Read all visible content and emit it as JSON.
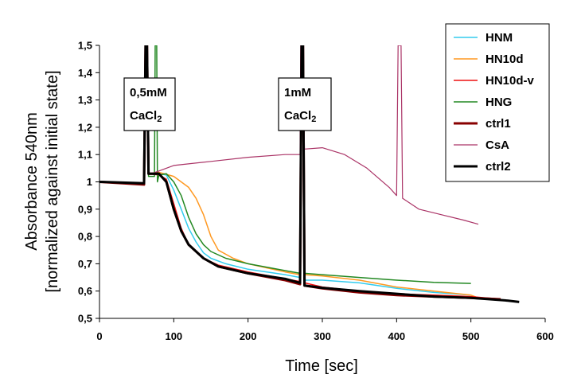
{
  "chart_data": {
    "type": "line",
    "xlabel": "Time [sec]",
    "ylabel_line1": "Absorbance 540nm",
    "ylabel_line2": "[normalized against initial state]",
    "xlim": [
      0,
      600
    ],
    "ylim": [
      0.5,
      1.5
    ],
    "x_ticks": [
      "0",
      "100",
      "200",
      "300",
      "400",
      "500",
      "600"
    ],
    "y_ticks": [
      "0,5",
      "0,6",
      "0,7",
      "0,8",
      "0,9",
      "1",
      "1,1",
      "1,2",
      "1,3",
      "1,4",
      "1,5"
    ],
    "grid": false,
    "legend_position": "top-right",
    "annotations": [
      {
        "line1": "0,5mM",
        "line2_main": "CaCl",
        "line2_sub": "2",
        "x": 65
      },
      {
        "line1": "1mM",
        "line2_main": "CaCl",
        "line2_sub": "2",
        "x": 273
      }
    ],
    "series": [
      {
        "name": "HNM",
        "color": "#33ccee",
        "width": 1.5,
        "points": [
          [
            0,
            1.0
          ],
          [
            60,
            0.995
          ],
          [
            62,
            1.5
          ],
          [
            64,
            1.5
          ],
          [
            66,
            1.03
          ],
          [
            80,
            1.03
          ],
          [
            90,
            1.025
          ],
          [
            100,
            0.97
          ],
          [
            110,
            0.9
          ],
          [
            120,
            0.83
          ],
          [
            130,
            0.78
          ],
          [
            140,
            0.74
          ],
          [
            150,
            0.72
          ],
          [
            170,
            0.7
          ],
          [
            200,
            0.68
          ],
          [
            250,
            0.66
          ],
          [
            270,
            0.65
          ],
          [
            272,
            1.5
          ],
          [
            274,
            1.5
          ],
          [
            276,
            0.64
          ],
          [
            300,
            0.64
          ],
          [
            350,
            0.63
          ],
          [
            400,
            0.61
          ],
          [
            450,
            0.595
          ],
          [
            500,
            0.585
          ]
        ]
      },
      {
        "name": "HN10d",
        "color": "#ff9922",
        "width": 1.5,
        "points": [
          [
            0,
            1.0
          ],
          [
            60,
            0.995
          ],
          [
            62,
            1.5
          ],
          [
            64,
            1.5
          ],
          [
            66,
            1.03
          ],
          [
            80,
            1.035
          ],
          [
            100,
            1.02
          ],
          [
            120,
            0.98
          ],
          [
            130,
            0.94
          ],
          [
            140,
            0.88
          ],
          [
            150,
            0.8
          ],
          [
            160,
            0.75
          ],
          [
            180,
            0.72
          ],
          [
            200,
            0.7
          ],
          [
            250,
            0.67
          ],
          [
            270,
            0.66
          ],
          [
            272,
            1.5
          ],
          [
            274,
            1.5
          ],
          [
            276,
            0.66
          ],
          [
            300,
            0.655
          ],
          [
            350,
            0.64
          ],
          [
            400,
            0.615
          ],
          [
            450,
            0.6
          ],
          [
            500,
            0.585
          ],
          [
            515,
            0.57
          ]
        ]
      },
      {
        "name": "HN10d-v",
        "color": "#ee1111",
        "width": 1.5,
        "points": [
          [
            0,
            1.0
          ],
          [
            60,
            0.995
          ],
          [
            62,
            1.5
          ],
          [
            64,
            1.5
          ],
          [
            66,
            1.03
          ],
          [
            80,
            1.025
          ],
          [
            90,
            1.01
          ],
          [
            100,
            0.92
          ],
          [
            110,
            0.83
          ],
          [
            120,
            0.77
          ],
          [
            140,
            0.72
          ],
          [
            160,
            0.695
          ],
          [
            200,
            0.67
          ],
          [
            250,
            0.645
          ],
          [
            270,
            0.635
          ],
          [
            272,
            1.5
          ],
          [
            274,
            1.5
          ],
          [
            276,
            0.63
          ],
          [
            300,
            0.615
          ],
          [
            350,
            0.6
          ],
          [
            400,
            0.59
          ],
          [
            450,
            0.585
          ],
          [
            500,
            0.58
          ],
          [
            520,
            0.575
          ],
          [
            535,
            0.572
          ]
        ]
      },
      {
        "name": "HNG",
        "color": "#228822",
        "width": 1.5,
        "points": [
          [
            0,
            1.0
          ],
          [
            60,
            0.995
          ],
          [
            62,
            1.5
          ],
          [
            64,
            1.5
          ],
          [
            66,
            1.02
          ],
          [
            74,
            1.02
          ],
          [
            75,
            1.5
          ],
          [
            77,
            1.5
          ],
          [
            78,
            1.0
          ],
          [
            80,
            1.025
          ],
          [
            90,
            1.03
          ],
          [
            100,
            1.0
          ],
          [
            110,
            0.95
          ],
          [
            120,
            0.87
          ],
          [
            130,
            0.81
          ],
          [
            140,
            0.77
          ],
          [
            150,
            0.745
          ],
          [
            170,
            0.72
          ],
          [
            200,
            0.7
          ],
          [
            250,
            0.675
          ],
          [
            270,
            0.665
          ],
          [
            272,
            1.5
          ],
          [
            274,
            1.5
          ],
          [
            276,
            0.665
          ],
          [
            300,
            0.66
          ],
          [
            350,
            0.65
          ],
          [
            400,
            0.64
          ],
          [
            450,
            0.632
          ],
          [
            500,
            0.628
          ]
        ]
      },
      {
        "name": "ctrl1",
        "color": "#880000",
        "width": 3,
        "points": [
          [
            0,
            1.0
          ],
          [
            60,
            0.99
          ],
          [
            62,
            1.5
          ],
          [
            64,
            1.5
          ],
          [
            66,
            1.03
          ],
          [
            80,
            1.03
          ],
          [
            90,
            1.0
          ],
          [
            100,
            0.9
          ],
          [
            110,
            0.82
          ],
          [
            120,
            0.77
          ],
          [
            140,
            0.72
          ],
          [
            160,
            0.69
          ],
          [
            200,
            0.665
          ],
          [
            250,
            0.64
          ],
          [
            270,
            0.625
          ],
          [
            272,
            1.5
          ],
          [
            274,
            1.5
          ],
          [
            276,
            0.62
          ],
          [
            300,
            0.61
          ],
          [
            350,
            0.595
          ],
          [
            400,
            0.585
          ],
          [
            450,
            0.58
          ],
          [
            500,
            0.575
          ],
          [
            540,
            0.57
          ]
        ]
      },
      {
        "name": "CsA",
        "color": "#aa3366",
        "width": 1.2,
        "points": [
          [
            0,
            1.0
          ],
          [
            60,
            0.995
          ],
          [
            62,
            1.5
          ],
          [
            64,
            1.5
          ],
          [
            66,
            1.03
          ],
          [
            70,
            1.03
          ],
          [
            80,
            1.04
          ],
          [
            100,
            1.06
          ],
          [
            150,
            1.075
          ],
          [
            200,
            1.09
          ],
          [
            250,
            1.1
          ],
          [
            270,
            1.1
          ],
          [
            271,
            1.5
          ],
          [
            273,
            1.5
          ],
          [
            276,
            1.12
          ],
          [
            300,
            1.125
          ],
          [
            330,
            1.1
          ],
          [
            360,
            1.05
          ],
          [
            390,
            0.98
          ],
          [
            400,
            0.95
          ],
          [
            402,
            1.5
          ],
          [
            406,
            1.5
          ],
          [
            408,
            0.94
          ],
          [
            430,
            0.9
          ],
          [
            460,
            0.88
          ],
          [
            490,
            0.86
          ],
          [
            510,
            0.845
          ]
        ]
      },
      {
        "name": "ctrl2",
        "color": "#000000",
        "width": 3,
        "points": [
          [
            0,
            1.0
          ],
          [
            60,
            0.995
          ],
          [
            62,
            1.5
          ],
          [
            64,
            1.5
          ],
          [
            66,
            1.03
          ],
          [
            80,
            1.03
          ],
          [
            90,
            1.0
          ],
          [
            100,
            0.9
          ],
          [
            110,
            0.82
          ],
          [
            120,
            0.77
          ],
          [
            140,
            0.72
          ],
          [
            160,
            0.69
          ],
          [
            200,
            0.665
          ],
          [
            250,
            0.645
          ],
          [
            270,
            0.63
          ],
          [
            272,
            1.5
          ],
          [
            274,
            1.5
          ],
          [
            276,
            0.62
          ],
          [
            300,
            0.612
          ],
          [
            350,
            0.6
          ],
          [
            400,
            0.59
          ],
          [
            450,
            0.58
          ],
          [
            500,
            0.575
          ],
          [
            550,
            0.565
          ],
          [
            565,
            0.56
          ]
        ]
      }
    ]
  }
}
